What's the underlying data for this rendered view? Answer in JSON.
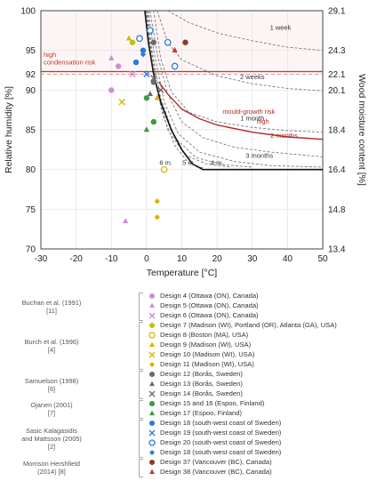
{
  "chart_data": {
    "type": "scatter",
    "xlabel": "Temperature [°C]",
    "ylabel": "Relative humidity [%]",
    "y2label": "Wood moisture content [%]",
    "xlim": [
      -30,
      50
    ],
    "ylim": [
      70,
      100
    ],
    "xticks": [
      "-30",
      "-20",
      "-10",
      "0",
      "10",
      "20",
      "30",
      "40",
      "50"
    ],
    "yticks": [
      "70",
      "75",
      "80",
      "85",
      "90",
      "95",
      "100"
    ],
    "y2ticks": [
      {
        "rh": 100,
        "label": "29.1"
      },
      {
        "rh": 95,
        "label": "24.3"
      },
      {
        "rh": 92,
        "label": "22.1"
      },
      {
        "rh": 90,
        "label": "20.1"
      },
      {
        "rh": 85,
        "label": "18.4"
      },
      {
        "rh": 80,
        "label": "16.4"
      },
      {
        "rh": 75,
        "label": "14.8"
      },
      {
        "rh": 70,
        "label": "13.4"
      }
    ],
    "threshold_rh": 92,
    "threshold_label_left": "92",
    "condensation_label": [
      "high",
      "condensation risk"
    ],
    "mould_label": [
      "high",
      "mould-growth risk"
    ],
    "isopleths": [
      {
        "label": "1 week",
        "points": [
          [
            6,
            100
          ],
          [
            12,
            98.5
          ],
          [
            20,
            97.2
          ],
          [
            30,
            96.2
          ],
          [
            40,
            95.4
          ],
          [
            50,
            95
          ]
        ]
      },
      {
        "label": "2 weeks",
        "points": [
          [
            3,
            100
          ],
          [
            6,
            96
          ],
          [
            10,
            93.8
          ],
          [
            20,
            91.8
          ],
          [
            30,
            90.8
          ],
          [
            40,
            90.2
          ],
          [
            50,
            89.9
          ]
        ]
      },
      {
        "label": "1 month",
        "points": [
          [
            2,
            100
          ],
          [
            4,
            94
          ],
          [
            7,
            89.8
          ],
          [
            12,
            87.2
          ],
          [
            20,
            86
          ],
          [
            30,
            85.3
          ],
          [
            40,
            84.9
          ],
          [
            50,
            84.7
          ]
        ]
      },
      {
        "label": "2 months",
        "points": [
          [
            1,
            100
          ],
          [
            3,
            94.5
          ],
          [
            6,
            89.5
          ],
          [
            10,
            86
          ],
          [
            16,
            84
          ],
          [
            25,
            82.8
          ],
          [
            35,
            82.2
          ],
          [
            50,
            81.6
          ]
        ]
      },
      {
        "label": "3 months",
        "points": [
          [
            0.5,
            100
          ],
          [
            2,
            95
          ],
          [
            5,
            88.5
          ],
          [
            9,
            84.5
          ],
          [
            15,
            82.2
          ],
          [
            25,
            81
          ],
          [
            35,
            80.5
          ],
          [
            50,
            80.3
          ]
        ]
      },
      {
        "label": "4 m.",
        "points": [
          [
            0.2,
            100
          ],
          [
            1.5,
            95
          ],
          [
            4,
            89
          ],
          [
            8,
            84
          ],
          [
            14,
            81.5
          ],
          [
            22,
            80.6
          ],
          [
            30,
            80.3
          ]
        ]
      },
      {
        "label": "5 m.",
        "points": [
          [
            0,
            100
          ],
          [
            1,
            96
          ],
          [
            3,
            90
          ],
          [
            6,
            85
          ],
          [
            11,
            81.8
          ],
          [
            17,
            80.7
          ],
          [
            24,
            80.3
          ]
        ]
      },
      {
        "label": "6 m.",
        "points": [
          [
            -0.3,
            100
          ],
          [
            0.5,
            97
          ],
          [
            2,
            92
          ],
          [
            4.5,
            87
          ],
          [
            8,
            83
          ],
          [
            12,
            80.8
          ],
          [
            16,
            80.2
          ]
        ]
      }
    ],
    "critical_curve": {
      "points": [
        [
          -0.5,
          100
        ],
        [
          0.5,
          96
        ],
        [
          2,
          92
        ],
        [
          4,
          88.5
        ],
        [
          7,
          85
        ],
        [
          10,
          82.5
        ],
        [
          13,
          80.7
        ],
        [
          16,
          80
        ],
        [
          20,
          80
        ],
        [
          30,
          80
        ],
        [
          40,
          80
        ],
        [
          50,
          80
        ]
      ]
    },
    "mould_red_curve": {
      "points": [
        [
          3.5,
          91
        ],
        [
          6,
          89.5
        ],
        [
          10,
          87.6
        ],
        [
          15,
          86.4
        ],
        [
          20,
          85.6
        ],
        [
          30,
          84.7
        ],
        [
          40,
          84.1
        ],
        [
          50,
          83.8
        ]
      ]
    },
    "series": [
      {
        "name": "Design 4 (Ottawa (ON), Canada)",
        "color": "#d08cdc",
        "marker": "circle",
        "points": [
          [
            -8,
            93
          ],
          [
            -10,
            90
          ]
        ]
      },
      {
        "name": "Design 5 (Ottawa (ON), Canada)",
        "color": "#d08cdc",
        "marker": "triangle",
        "points": [
          [
            -6,
            73.5
          ],
          [
            -10,
            94
          ]
        ]
      },
      {
        "name": "Design 6 (Ottawa (ON), Canada)",
        "color": "#d08cdc",
        "marker": "x",
        "points": [
          [
            -4,
            92
          ]
        ]
      },
      {
        "name": "Design 7 (Madison (WI), Portland (OR), Atlanta (GA), USA)",
        "color": "#b8c21a",
        "marker": "circle",
        "points": [
          [
            -4,
            96
          ]
        ]
      },
      {
        "name": "Design 8 (Boston (MA), USA)",
        "color": "#d8b400",
        "marker": "circle-open",
        "points": [
          [
            5,
            80
          ]
        ]
      },
      {
        "name": "Design 9 (Madison (WI), USA)",
        "color": "#d8b400",
        "marker": "triangle",
        "points": [
          [
            -5,
            96.5
          ],
          [
            3,
            89
          ]
        ]
      },
      {
        "name": "Design 10 (Madison (WI), USA)",
        "color": "#d8b400",
        "marker": "x",
        "points": [
          [
            -7,
            88.5
          ]
        ]
      },
      {
        "name": "Design 11 (Madison (WI), USA)",
        "color": "#d8b400",
        "marker": "diamond",
        "points": [
          [
            3,
            76
          ],
          [
            3,
            74
          ]
        ]
      },
      {
        "name": "Design 12 (Borås, Sweden)",
        "color": "#6b6b6b",
        "marker": "circle",
        "points": [
          [
            2,
            96
          ],
          [
            2,
            91
          ]
        ]
      },
      {
        "name": "Design 13 (Borås, Sweden)",
        "color": "#6b6b6b",
        "marker": "triangle",
        "points": [
          [
            1,
            89.5
          ]
        ]
      },
      {
        "name": "Design 14 (Borås, Sweden)",
        "color": "#6b6b6b",
        "marker": "x",
        "points": [
          [
            2,
            91.5
          ],
          [
            4,
            90
          ]
        ]
      },
      {
        "name": "Design 15 and 16 (Espoo, Finland)",
        "color": "#3d9a3d",
        "marker": "circle",
        "points": [
          [
            0,
            89
          ],
          [
            2,
            86
          ]
        ]
      },
      {
        "name": "Design 17 (Espoo, Finland)",
        "color": "#3d9a3d",
        "marker": "triangle",
        "points": [
          [
            0,
            85
          ]
        ]
      },
      {
        "name": "Design 18 (south-west coast of Sweden)",
        "color": "#2b7bd6",
        "marker": "circle",
        "points": [
          [
            -3,
            93.5
          ],
          [
            -1,
            95
          ]
        ]
      },
      {
        "name": "Design 19 (south-west coast of Sweden)",
        "color": "#2b7bd6",
        "marker": "x",
        "points": [
          [
            0,
            92
          ]
        ]
      },
      {
        "name": "Design 20 (south-west coast of Sweden)",
        "color": "#2b7bd6",
        "marker": "circle-open",
        "points": [
          [
            -2,
            96.5
          ],
          [
            1,
            97.5
          ],
          [
            6,
            96
          ],
          [
            8,
            93
          ]
        ]
      },
      {
        "name": "Design 18 (south-west coast of Sweden)",
        "color": "#2b7bd6",
        "marker": "diamond",
        "points": [
          [
            -1,
            94.5
          ]
        ]
      },
      {
        "name": "Design 37 (Vancouver (BC), Canada)",
        "color": "#8b3a1f",
        "marker": "circle",
        "points": [
          [
            11,
            96
          ]
        ]
      },
      {
        "name": "Design 38 (Vancouver (BC), Canada)",
        "color": "#c43a2a",
        "marker": "triangle",
        "points": [
          [
            8,
            95
          ]
        ]
      }
    ]
  },
  "legend_groups": [
    {
      "label": [
        "Buchan et al. (1991)",
        "[11]"
      ],
      "range": [
        0,
        2
      ]
    },
    {
      "label": [
        "Burch et al. (1996)",
        "[4]"
      ],
      "range": [
        3,
        7
      ]
    },
    {
      "label": [
        "Samuelson (1998)",
        "[6]"
      ],
      "range": [
        8,
        10
      ]
    },
    {
      "label": [
        "Ojanen (2001)",
        "[7]"
      ],
      "range": [
        11,
        12
      ]
    },
    {
      "label": [
        "Sasic Kalagasidis",
        "and Mattsson (2005)",
        "[2]"
      ],
      "range": [
        13,
        16
      ]
    },
    {
      "label": [
        "Morrison Hershfield",
        "(2014) [8]"
      ],
      "range": [
        17,
        18
      ]
    }
  ]
}
